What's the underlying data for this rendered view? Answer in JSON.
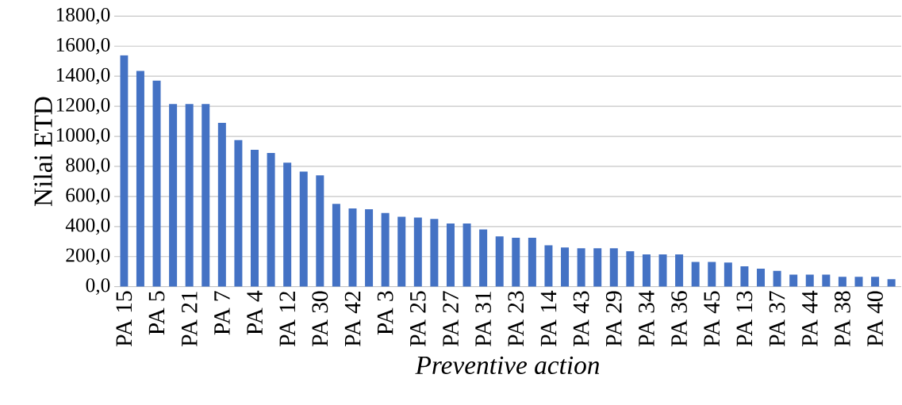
{
  "chart_data": {
    "type": "bar",
    "xlabel": "Preventive action",
    "ylabel": "Nilai ETD",
    "categories": [
      "PA 15",
      null,
      "PA 5",
      null,
      "PA 21",
      null,
      "PA 7",
      null,
      "PA 4",
      null,
      "PA 12",
      null,
      "PA 30",
      null,
      "PA 42",
      null,
      "PA 3",
      null,
      "PA 25",
      null,
      "PA 27",
      null,
      "PA 31",
      null,
      "PA 23",
      null,
      "PA 14",
      null,
      "PA 43",
      null,
      "PA 29",
      null,
      "PA 34",
      null,
      "PA 36",
      null,
      "PA 45",
      null,
      "PA 13",
      null,
      "PA 37",
      null,
      "PA 44",
      null,
      "PA 38",
      null,
      "PA 40",
      null
    ],
    "values": [
      1540,
      1435,
      1370,
      1215,
      1215,
      1215,
      1090,
      975,
      910,
      890,
      825,
      765,
      740,
      550,
      520,
      515,
      490,
      465,
      460,
      450,
      420,
      420,
      380,
      335,
      325,
      325,
      275,
      260,
      255,
      255,
      255,
      235,
      215,
      215,
      215,
      165,
      165,
      160,
      135,
      120,
      105,
      80,
      80,
      80,
      65,
      65,
      65,
      50
    ],
    "color": "#4472c4",
    "ylim": [
      0,
      1800
    ],
    "yticks": [
      {
        "value": 0,
        "label": "0,0"
      },
      {
        "value": 200,
        "label": "200,0"
      },
      {
        "value": 400,
        "label": "400,0"
      },
      {
        "value": 600,
        "label": "600,0"
      },
      {
        "value": 800,
        "label": "800,0"
      },
      {
        "value": 1000,
        "label": "1000,0"
      },
      {
        "value": 1200,
        "label": "1200,0"
      },
      {
        "value": 1400,
        "label": "1400,0"
      },
      {
        "value": 1600,
        "label": "1600,0"
      },
      {
        "value": 1800,
        "label": "1800,0"
      }
    ],
    "grid": "y"
  }
}
